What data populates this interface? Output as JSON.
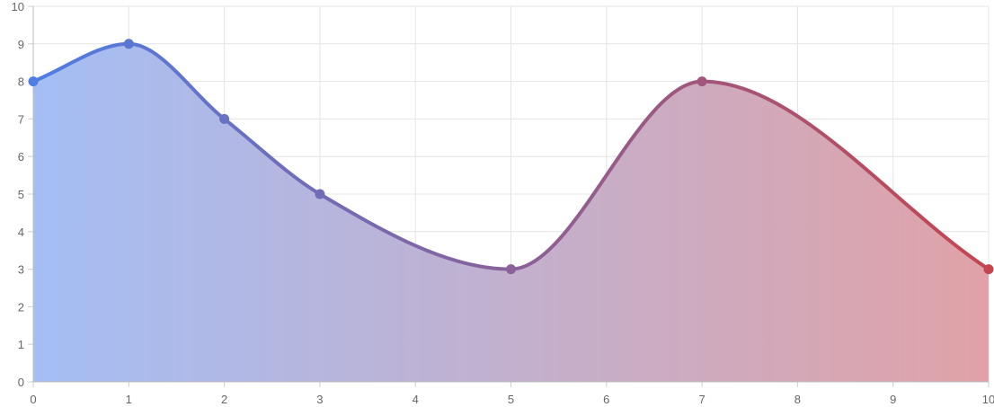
{
  "chart_data": {
    "type": "area",
    "title": "",
    "xlabel": "",
    "ylabel": "",
    "x": [
      0,
      1,
      2,
      3,
      5,
      7,
      10
    ],
    "series": [
      {
        "values": [
          8,
          9,
          7,
          5,
          3,
          8,
          3
        ]
      }
    ],
    "x_ticks": [
      "0",
      "1",
      "2",
      "3",
      "4",
      "5",
      "6",
      "7",
      "8",
      "9",
      "10"
    ],
    "y_ticks": [
      "0",
      "1",
      "2",
      "3",
      "4",
      "5",
      "6",
      "7",
      "8",
      "9",
      "10"
    ],
    "xlim": [
      0,
      10
    ],
    "ylim": [
      0,
      10
    ],
    "grid": true,
    "legend": "none",
    "curve": "smooth",
    "colors": {
      "gradient_start": "#4f7de3",
      "gradient_end": "#c5454f",
      "fill_start": "#a4bef5",
      "fill_end": "#e0a2a7",
      "grid": "#e4e4e4",
      "tick_text": "#666666"
    }
  }
}
